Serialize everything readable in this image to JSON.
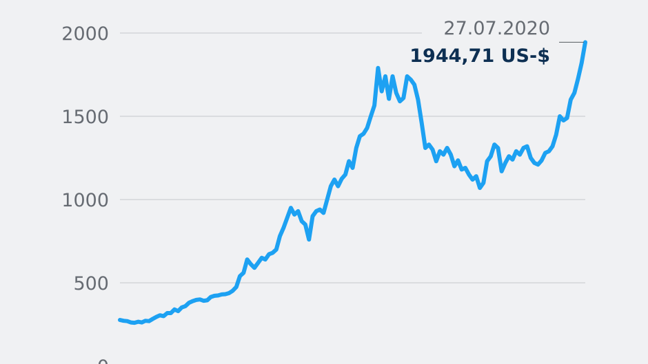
{
  "colors": {
    "background": "#f0f1f3",
    "line": "#1da1f2",
    "value_text": "#0d2f52",
    "grid": "#c3c6cb",
    "axis_text": "#666b72"
  },
  "chart_data": {
    "type": "line",
    "title": "",
    "xlabel": "",
    "ylabel": "",
    "ylim": [
      0,
      2000
    ],
    "yticks": [
      0,
      500,
      1000,
      1500,
      2000
    ],
    "grid": true,
    "annotation": {
      "date": "27.07.2020",
      "value_label": "1944,71 US-$",
      "value": 1944.71
    },
    "series": [
      {
        "values": [
          277,
          272,
          270,
          262,
          260,
          266,
          262,
          272,
          270,
          283,
          295,
          305,
          300,
          318,
          318,
          340,
          330,
          352,
          360,
          380,
          390,
          397,
          400,
          392,
          395,
          415,
          422,
          424,
          430,
          432,
          438,
          452,
          475,
          540,
          560,
          640,
          612,
          590,
          620,
          650,
          640,
          672,
          680,
          700,
          780,
          830,
          890,
          950,
          910,
          930,
          870,
          850,
          760,
          900,
          930,
          940,
          920,
          1000,
          1080,
          1120,
          1080,
          1125,
          1150,
          1230,
          1190,
          1310,
          1380,
          1395,
          1430,
          1500,
          1565,
          1790,
          1650,
          1740,
          1605,
          1740,
          1640,
          1590,
          1610,
          1740,
          1720,
          1690,
          1600,
          1460,
          1310,
          1330,
          1300,
          1230,
          1290,
          1270,
          1310,
          1270,
          1200,
          1235,
          1180,
          1190,
          1150,
          1120,
          1140,
          1070,
          1100,
          1230,
          1260,
          1330,
          1310,
          1170,
          1220,
          1260,
          1240,
          1290,
          1270,
          1310,
          1320,
          1250,
          1220,
          1210,
          1235,
          1280,
          1290,
          1320,
          1390,
          1500,
          1475,
          1490,
          1600,
          1640,
          1725,
          1820,
          1944.71
        ]
      }
    ]
  }
}
